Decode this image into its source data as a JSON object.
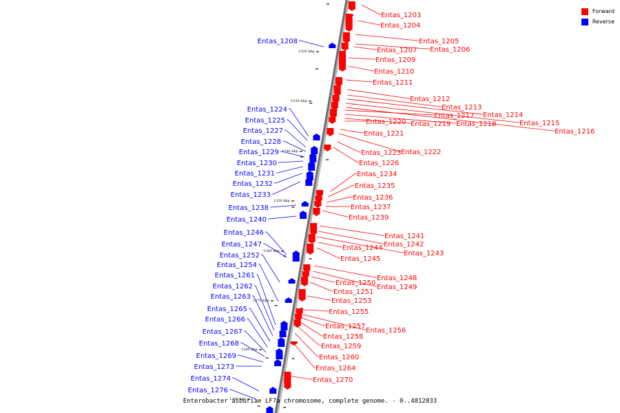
{
  "legend": {
    "forward_label": "Forward",
    "reverse_label": "Reverse",
    "forward_color": "#ff0000",
    "reverse_color": "#0000ff"
  },
  "caption": "Enterobacter asburiae LF7a chromosome, complete genome. - 0..4812833",
  "ticks": [
    "1320 kbp",
    "1330 kbp",
    "1340 kbp",
    "1350 kbp",
    "1360 kbp",
    "1370 kbp",
    "1380 kbp",
    "1390 kbp"
  ],
  "forward_labels": [
    "Entas_1203",
    "Entas_1204",
    "Entas_1205",
    "Entas_1206",
    "Entas_1207",
    "Entas_1209",
    "Entas_1210",
    "Entas_1211",
    "Entas_1212",
    "Entas_1213",
    "Entas_1214",
    "Entas_1215",
    "Entas_1216",
    "Entas_1217",
    "Entas_1218",
    "Entas_1219",
    "Entas_1220",
    "Entas_1221",
    "Entas_1222",
    "Entas_1223",
    "Entas_1226",
    "Entas_1234",
    "Entas_1235",
    "Entas_1236",
    "Entas_1237",
    "Entas_1239",
    "Entas_1241",
    "Entas_1242",
    "Entas_1243",
    "Entas_1244",
    "Entas_1245",
    "Entas_1248",
    "Entas_1249",
    "Entas_1250",
    "Entas_1251",
    "Entas_1253",
    "Entas_1255",
    "Entas_1256",
    "Entas_1257",
    "Entas_1258",
    "Entas_1259",
    "Entas_1260",
    "Entas_1264",
    "Entas_1270"
  ],
  "reverse_labels": [
    "Entas_1208",
    "Entas_1224",
    "Entas_1225",
    "Entas_1227",
    "Entas_1228",
    "Entas_1229",
    "Entas_1230",
    "Entas_1231",
    "Entas_1232",
    "Entas_1233",
    "Entas_1238",
    "Entas_1240",
    "Entas_1246",
    "Entas_1247",
    "Entas_1252",
    "Entas_1254",
    "Entas_1261",
    "Entas_1262",
    "Entas_1263",
    "Entas_1265",
    "Entas_1266",
    "Entas_1267",
    "Entas_1268",
    "Entas_1269",
    "Entas_1273",
    "Entas_1274",
    "Entas_1276"
  ]
}
